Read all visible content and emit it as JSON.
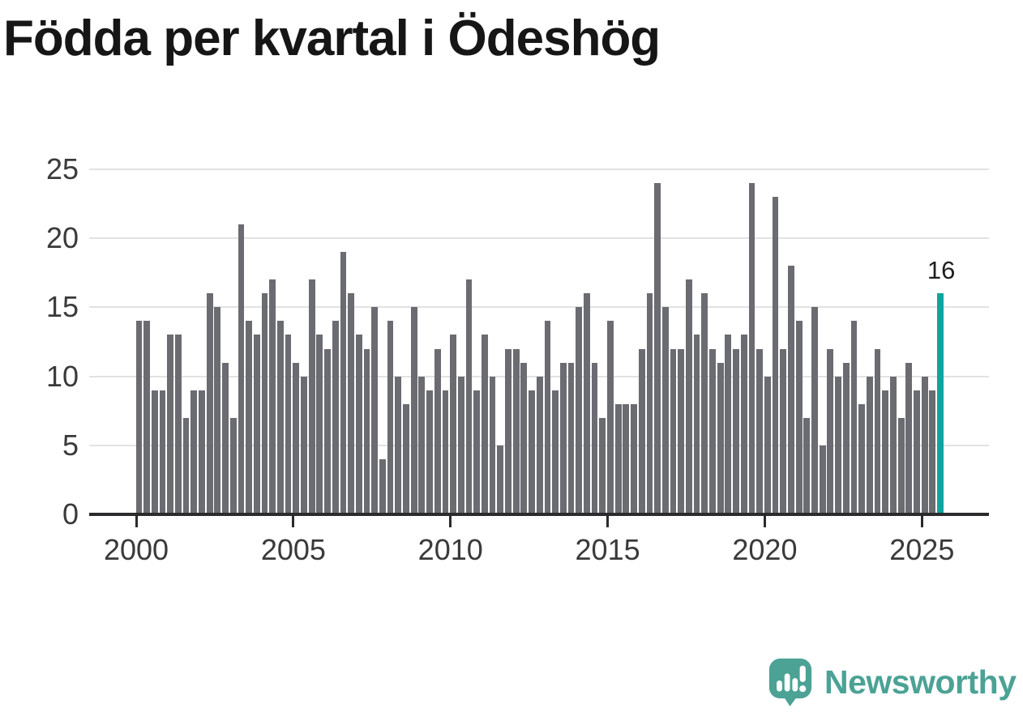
{
  "title": "Födda per kvartal i Ödeshög",
  "annotation": {
    "label": "16"
  },
  "footer": {
    "brand": "Newsworthy",
    "logo_icon": "newsworthy-speech-bubble-bar-chart-icon"
  },
  "colors": {
    "bar": "#6b6b72",
    "highlight": "#11a49e",
    "grid": "#e2e2e2",
    "axis": "#2b2b2e",
    "labels": "#3a3a3a",
    "title": "#161616",
    "brand": "#4ba295"
  },
  "chart_data": {
    "type": "bar",
    "title": "Födda per kvartal i Ödeshög",
    "xlabel": "",
    "ylabel": "",
    "x_start_year": 2000,
    "quarters_per_year": 4,
    "start_quarter": "2000Q1",
    "end_quarter": "2025Q3",
    "x_tick_labels": [
      "2000",
      "2005",
      "2010",
      "2015",
      "2020",
      "2025"
    ],
    "y_tick_labels": [
      "0",
      "5",
      "10",
      "15",
      "20",
      "25"
    ],
    "y_ticks": [
      0,
      5,
      10,
      15,
      20,
      25
    ],
    "ylim": [
      0,
      25
    ],
    "grid": true,
    "legend": "none",
    "highlight_index": 102,
    "highlight_value_label": "16",
    "values": [
      14,
      14,
      9,
      9,
      13,
      13,
      7,
      9,
      9,
      16,
      15,
      11,
      7,
      21,
      14,
      13,
      16,
      17,
      14,
      13,
      11,
      10,
      17,
      13,
      12,
      14,
      19,
      16,
      13,
      12,
      15,
      4,
      14,
      10,
      8,
      15,
      10,
      9,
      12,
      9,
      13,
      10,
      17,
      9,
      13,
      10,
      5,
      12,
      12,
      11,
      9,
      10,
      14,
      9,
      11,
      11,
      15,
      16,
      11,
      7,
      14,
      8,
      8,
      8,
      12,
      16,
      24,
      15,
      12,
      12,
      17,
      13,
      16,
      12,
      11,
      13,
      12,
      13,
      24,
      12,
      10,
      23,
      12,
      18,
      14,
      7,
      15,
      5,
      12,
      10,
      11,
      14,
      8,
      10,
      12,
      9,
      10,
      7,
      11,
      9,
      10,
      9,
      16
    ]
  }
}
